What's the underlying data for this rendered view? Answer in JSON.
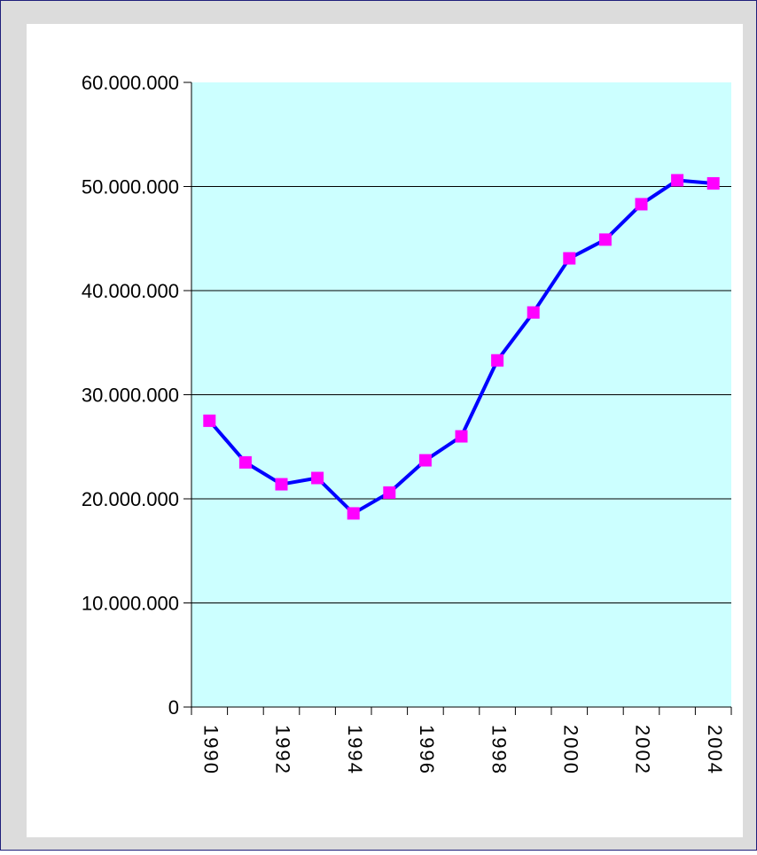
{
  "chart_data": {
    "type": "line",
    "categories": [
      "1990",
      null,
      "1992",
      null,
      "1994",
      null,
      "1996",
      null,
      "1998",
      null,
      "2000",
      null,
      "2002",
      null,
      "2004"
    ],
    "series": [
      {
        "name": null,
        "color": "#0000ff",
        "marker_color": "#ff00ff",
        "values": [
          27500000,
          23500000,
          21400000,
          22000000,
          18600000,
          20600000,
          23700000,
          26000000,
          33300000,
          37900000,
          43100000,
          44900000,
          48300000,
          50600000,
          50300000
        ]
      }
    ],
    "ylim": [
      0,
      60000000
    ],
    "yticks": [
      0,
      {
        "value": 10000000,
        "label": "10.000.000"
      },
      {
        "value": 20000000,
        "label": "20.000.000"
      },
      {
        "value": 30000000,
        "label": "30.000.000"
      },
      {
        "value": 40000000,
        "label": "40.000.000"
      },
      {
        "value": 50000000,
        "label": "50.000.000"
      },
      {
        "value": 60000000,
        "label": "60.000.000"
      }
    ],
    "grid": true,
    "plot_background": "#ccffff"
  }
}
